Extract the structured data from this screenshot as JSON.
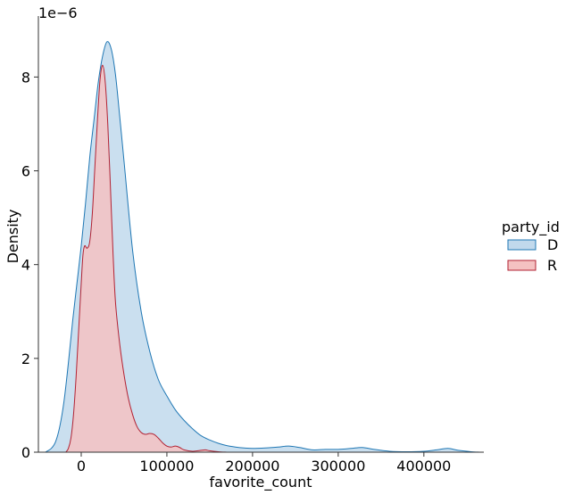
{
  "chart_data": {
    "type": "area",
    "title": "",
    "xlabel": "favorite_count",
    "ylabel": "Density",
    "y_offset_label": "1e−6",
    "xlim": [
      -50000,
      470000
    ],
    "ylim": [
      0,
      9.3
    ],
    "x_ticks": [
      0,
      100000,
      200000,
      300000,
      400000
    ],
    "x_tick_labels": [
      "0",
      "100000",
      "200000",
      "300000",
      "400000"
    ],
    "y_ticks": [
      0,
      2,
      4,
      6,
      8
    ],
    "y_tick_labels": [
      "0",
      "2",
      "4",
      "6",
      "8"
    ],
    "grid": false,
    "legend": {
      "title": "party_id",
      "position": "right"
    },
    "series": [
      {
        "name": "D",
        "fill": "#c1d9ec",
        "stroke": "#1f77b4",
        "points": [
          [
            -42000,
            0.0
          ],
          [
            -35000,
            0.08
          ],
          [
            -30000,
            0.22
          ],
          [
            -25000,
            0.55
          ],
          [
            -20000,
            1.1
          ],
          [
            -15000,
            1.9
          ],
          [
            -10000,
            2.8
          ],
          [
            -5000,
            3.6
          ],
          [
            0,
            4.4
          ],
          [
            5000,
            5.3
          ],
          [
            10000,
            6.3
          ],
          [
            15000,
            7.1
          ],
          [
            20000,
            7.9
          ],
          [
            25000,
            8.45
          ],
          [
            30000,
            8.75
          ],
          [
            35000,
            8.6
          ],
          [
            40000,
            8.05
          ],
          [
            45000,
            7.15
          ],
          [
            50000,
            6.2
          ],
          [
            60000,
            4.3
          ],
          [
            70000,
            3.0
          ],
          [
            80000,
            2.15
          ],
          [
            90000,
            1.55
          ],
          [
            100000,
            1.2
          ],
          [
            110000,
            0.9
          ],
          [
            120000,
            0.68
          ],
          [
            130000,
            0.5
          ],
          [
            140000,
            0.35
          ],
          [
            150000,
            0.26
          ],
          [
            160000,
            0.19
          ],
          [
            170000,
            0.14
          ],
          [
            180000,
            0.11
          ],
          [
            190000,
            0.09
          ],
          [
            200000,
            0.08
          ],
          [
            215000,
            0.09
          ],
          [
            230000,
            0.11
          ],
          [
            242000,
            0.13
          ],
          [
            255000,
            0.1
          ],
          [
            270000,
            0.05
          ],
          [
            285000,
            0.06
          ],
          [
            300000,
            0.06
          ],
          [
            315000,
            0.08
          ],
          [
            328000,
            0.1
          ],
          [
            342000,
            0.06
          ],
          [
            360000,
            0.02
          ],
          [
            380000,
            0.01
          ],
          [
            400000,
            0.02
          ],
          [
            415000,
            0.05
          ],
          [
            428000,
            0.08
          ],
          [
            440000,
            0.04
          ],
          [
            455000,
            0.01
          ],
          [
            465000,
            0.0
          ]
        ]
      },
      {
        "name": "R",
        "fill": "#f4c2c2",
        "stroke": "#b22233",
        "points": [
          [
            -18000,
            0.0
          ],
          [
            -15000,
            0.08
          ],
          [
            -12000,
            0.3
          ],
          [
            -9000,
            0.8
          ],
          [
            -6000,
            1.6
          ],
          [
            -3000,
            2.6
          ],
          [
            0,
            3.6
          ],
          [
            2000,
            4.2
          ],
          [
            4000,
            4.4
          ],
          [
            7000,
            4.35
          ],
          [
            10000,
            4.5
          ],
          [
            13000,
            5.1
          ],
          [
            16000,
            6.1
          ],
          [
            19000,
            7.1
          ],
          [
            22000,
            7.95
          ],
          [
            25000,
            8.25
          ],
          [
            28000,
            7.9
          ],
          [
            31000,
            7.0
          ],
          [
            34000,
            5.7
          ],
          [
            37000,
            4.3
          ],
          [
            40000,
            3.2
          ],
          [
            45000,
            2.3
          ],
          [
            50000,
            1.65
          ],
          [
            55000,
            1.15
          ],
          [
            60000,
            0.8
          ],
          [
            65000,
            0.55
          ],
          [
            70000,
            0.42
          ],
          [
            75000,
            0.38
          ],
          [
            80000,
            0.4
          ],
          [
            85000,
            0.38
          ],
          [
            90000,
            0.3
          ],
          [
            95000,
            0.2
          ],
          [
            100000,
            0.13
          ],
          [
            105000,
            0.11
          ],
          [
            110000,
            0.13
          ],
          [
            115000,
            0.1
          ],
          [
            120000,
            0.05
          ],
          [
            130000,
            0.02
          ],
          [
            140000,
            0.04
          ],
          [
            145000,
            0.05
          ],
          [
            150000,
            0.03
          ],
          [
            160000,
            0.01
          ],
          [
            170000,
            0.0
          ]
        ]
      }
    ]
  }
}
